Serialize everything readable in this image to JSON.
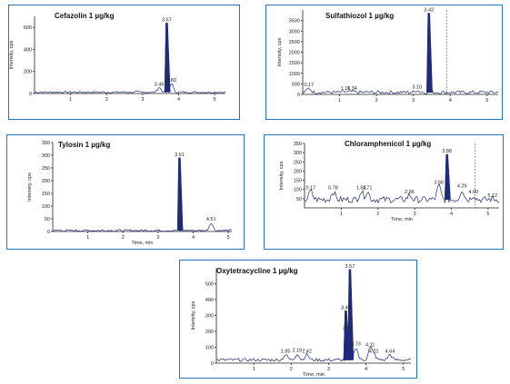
{
  "chart_data": [
    {
      "type": "line",
      "title": "Cefazolin 1 µg/kg",
      "ylabel": "Intensity, cps",
      "xlabel": "",
      "xlim": [
        0,
        5.3
      ],
      "ylim": [
        0,
        700
      ],
      "xticks": [
        1,
        2,
        3,
        4,
        5
      ],
      "yticks": [
        0,
        200,
        400,
        600
      ],
      "peaks": [
        {
          "rt": 3.46,
          "label": "3.46",
          "height": 55,
          "filled": false
        },
        {
          "rt": 3.67,
          "label": "3.67",
          "height": 640,
          "filled": true
        },
        {
          "rt": 3.8,
          "label": "3.80",
          "height": 90,
          "filled": false
        }
      ],
      "baseline": 12,
      "noise": 8,
      "dashed_x": null,
      "colors": {
        "border": "#2a72b8",
        "trace": "#1f2a78"
      }
    },
    {
      "type": "line",
      "title": "Sulfathiozol 1 µg/kg",
      "ylabel": "Intensity, cps",
      "xlabel": "",
      "xlim": [
        0,
        5.3
      ],
      "ylim": [
        0,
        4000
      ],
      "xticks": [
        1,
        2,
        3,
        4,
        5
      ],
      "yticks": [
        0,
        500,
        1000,
        1500,
        2000,
        2500,
        3000,
        3500
      ],
      "peaks": [
        {
          "rt": 0.17,
          "label": "0.17",
          "height": 300,
          "filled": false
        },
        {
          "rt": 1.16,
          "label": "1.16",
          "height": 130,
          "filled": false
        },
        {
          "rt": 1.34,
          "label": "1.34",
          "height": 130,
          "filled": false
        },
        {
          "rt": 3.1,
          "label": "3.10",
          "height": 200,
          "filled": false
        },
        {
          "rt": 3.42,
          "label": "3.42",
          "height": 3850,
          "filled": true
        }
      ],
      "baseline": 100,
      "noise": 80,
      "dashed_x": 3.9,
      "colors": {
        "border": "#2a72b8",
        "trace": "#1f2a78"
      }
    },
    {
      "type": "line",
      "title": "Tylosin 1 µg/kg",
      "ylabel": "Intensity, cps",
      "xlabel": "Time, min",
      "xlim": [
        0,
        5.1
      ],
      "ylim": [
        0,
        350
      ],
      "xticks": [
        1,
        2,
        3,
        4,
        5
      ],
      "yticks": [
        0,
        50,
        100,
        150,
        200,
        250,
        300,
        350
      ],
      "peaks": [
        {
          "rt": 3.61,
          "label": "3.61",
          "height": 290,
          "filled": true
        },
        {
          "rt": 4.51,
          "label": "4.51",
          "height": 35,
          "filled": false
        }
      ],
      "baseline": 4,
      "noise": 4,
      "dashed_x": null,
      "colors": {
        "border": "#2a72b8",
        "trace": "#1f2a78"
      }
    },
    {
      "type": "line",
      "title": "Chloramphenicol 1 µg/kg",
      "ylabel": "Intensity, cps",
      "xlabel": "Time, min",
      "xlim": [
        0,
        5.3
      ],
      "ylim": [
        0,
        350
      ],
      "xticks": [
        1,
        2,
        3,
        4,
        5
      ],
      "yticks": [
        50,
        100,
        150,
        200,
        250,
        300,
        350
      ],
      "peaks": [
        {
          "rt": 0.17,
          "label": "0.17",
          "height": 90,
          "filled": false
        },
        {
          "rt": 0.78,
          "label": "0.78",
          "height": 90,
          "filled": false
        },
        {
          "rt": 1.54,
          "label": "1.54",
          "height": 90,
          "filled": false
        },
        {
          "rt": 1.71,
          "label": "1.71",
          "height": 90,
          "filled": false
        },
        {
          "rt": 2.86,
          "label": "2.86",
          "height": 70,
          "filled": false
        },
        {
          "rt": 3.66,
          "label": "3.66",
          "height": 120,
          "filled": false
        },
        {
          "rt": 3.88,
          "label": "3.88",
          "height": 290,
          "filled": true
        },
        {
          "rt": 4.29,
          "label": "4.29",
          "height": 100,
          "filled": false
        },
        {
          "rt": 4.6,
          "label": "4.60",
          "height": 70,
          "filled": false
        },
        {
          "rt": 5.12,
          "label": "5.12",
          "height": 50,
          "filled": false
        }
      ],
      "baseline": 45,
      "noise": 18,
      "dashed_x": 4.65,
      "colors": {
        "border": "#2a72b8",
        "trace": "#1f2a78"
      }
    },
    {
      "type": "line",
      "title": "Oxytetracycline 1 µg/kg",
      "ylabel": "Intensity, cps",
      "xlabel": "Time, min",
      "xlim": [
        0,
        5.2
      ],
      "ylim": [
        0,
        600
      ],
      "xticks": [
        1,
        2,
        3,
        4,
        5
      ],
      "yticks": [
        0,
        100,
        200,
        300,
        400,
        500
      ],
      "peaks": [
        {
          "rt": 1.85,
          "label": "1.85",
          "height": 55,
          "filled": false
        },
        {
          "rt": 2.16,
          "label": "2.16",
          "height": 60,
          "filled": false
        },
        {
          "rt": 2.42,
          "label": "2.42",
          "height": 55,
          "filled": false
        },
        {
          "rt": 3.57,
          "label": "3.57",
          "height": 590,
          "filled": true
        },
        {
          "rt": 3.46,
          "label": "3.46",
          "height": 330,
          "filled": true
        },
        {
          "rt": 3.51,
          "label": "3.51",
          "height": 200,
          "filled": true
        },
        {
          "rt": 3.73,
          "label": "3.73",
          "height": 100,
          "filled": false
        },
        {
          "rt": 4.11,
          "label": "4.11",
          "height": 95,
          "filled": false
        },
        {
          "rt": 4.21,
          "label": "4.21",
          "height": 55,
          "filled": false
        },
        {
          "rt": 4.64,
          "label": "4.64",
          "height": 55,
          "filled": false
        }
      ],
      "baseline": 20,
      "noise": 10,
      "dashed_x": null,
      "colors": {
        "border": "#2a72b8",
        "trace": "#1f2a78"
      }
    }
  ]
}
